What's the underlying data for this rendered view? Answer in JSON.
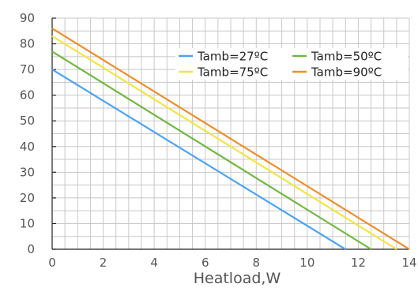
{
  "chart_data": {
    "type": "line",
    "title": "",
    "xlabel": "Heatload,W",
    "ylabel": "",
    "xlim": [
      0,
      14
    ],
    "ylim": [
      0,
      90
    ],
    "x_ticks": [
      0,
      2,
      4,
      6,
      8,
      10,
      12,
      14
    ],
    "y_ticks": [
      0,
      10,
      20,
      30,
      40,
      50,
      60,
      70,
      80,
      90
    ],
    "x_tick_labels": [
      "0",
      "2",
      "4",
      "6",
      "8",
      "10",
      "12",
      "14"
    ],
    "y_tick_labels": [
      "0",
      "10",
      "20",
      "30",
      "40",
      "50",
      "60",
      "70",
      "80",
      "90"
    ],
    "grid": true,
    "legend_position": "top-right",
    "series": [
      {
        "name": "Tamb=27ºC",
        "color": "#4da3ee",
        "x": [
          0,
          11.5
        ],
        "y": [
          70,
          0
        ]
      },
      {
        "name": "Tamb=50ºC",
        "color": "#72b743",
        "x": [
          0,
          12.5
        ],
        "y": [
          77,
          0
        ]
      },
      {
        "name": "Tamb=75ºC",
        "color": "#f2e545",
        "x": [
          0,
          13.5
        ],
        "y": [
          83,
          0
        ]
      },
      {
        "name": "Tamb=90ºC",
        "color": "#ec8f2c",
        "x": [
          0,
          14
        ],
        "y": [
          86,
          0
        ]
      }
    ]
  }
}
